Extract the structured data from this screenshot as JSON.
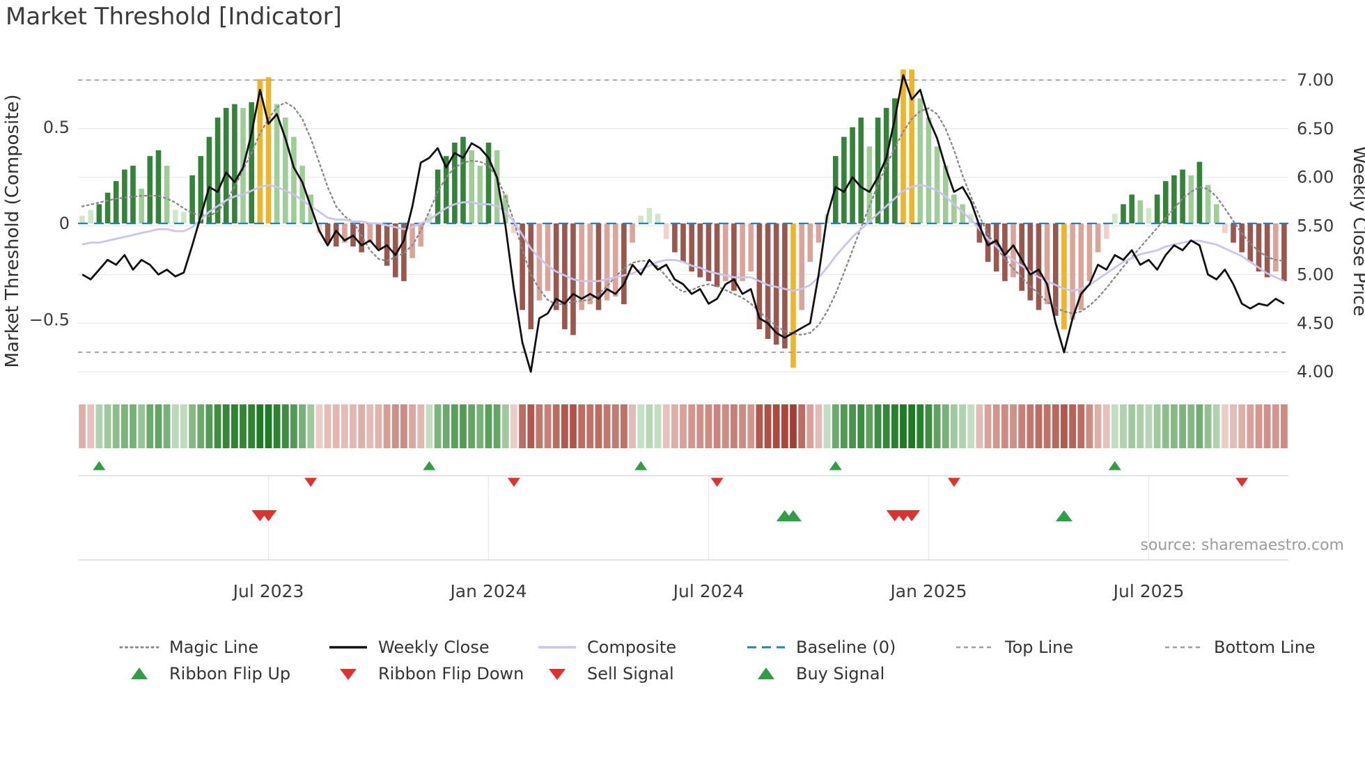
{
  "title": "Market Threshold [Indicator]",
  "source_text": "source: sharemaestro.com",
  "axes": {
    "left_label": "Market Threshold (Composite)",
    "left_ticks": [
      "0.5",
      "0",
      "−0.5"
    ],
    "left_tick_values": [
      0.5,
      0,
      -0.5
    ],
    "right_label": "Weekly Close Price",
    "right_ticks": [
      "7.00",
      "6.50",
      "6.00",
      "5.50",
      "5.00",
      "4.50",
      "4.00"
    ],
    "right_tick_values": [
      7,
      6.5,
      6,
      5.5,
      5,
      4.5,
      4
    ]
  },
  "chart_data": {
    "type": "bar",
    "subtype": "weekly indicator histogram with overlaid lines, color ribbon and signal markers",
    "x_unit": "weeks, approx Feb 2023 - Oct 2025",
    "x_ticks": [
      {
        "label": "Jul 2023",
        "week": 22
      },
      {
        "label": "Jan 2024",
        "week": 48
      },
      {
        "label": "Jul 2024",
        "week": 74
      },
      {
        "label": "Jan 2025",
        "week": 100
      },
      {
        "label": "Jul 2025",
        "week": 126
      }
    ],
    "left_axis_range": [
      -0.85,
      0.85
    ],
    "right_axis_range": [
      3.9,
      7.15
    ],
    "baseline_value": 0,
    "top_line_value": 7.0,
    "bottom_line_value": 4.2,
    "series": [
      {
        "name": "Composite Histogram",
        "axis": "left",
        "type": "bar",
        "values": [
          0.04,
          0.07,
          0.1,
          0.16,
          0.22,
          0.28,
          0.3,
          0.18,
          0.35,
          0.38,
          0.3,
          0.07,
          0.06,
          0.25,
          0.35,
          0.45,
          0.55,
          0.6,
          0.62,
          0.6,
          0.63,
          0.75,
          0.76,
          0.62,
          0.55,
          0.45,
          0.3,
          0.15,
          -0.05,
          -0.1,
          -0.12,
          -0.1,
          -0.12,
          -0.15,
          -0.1,
          -0.13,
          -0.22,
          -0.28,
          -0.3,
          -0.18,
          -0.12,
          0.05,
          0.28,
          0.35,
          0.42,
          0.45,
          0.38,
          0.3,
          0.42,
          0.38,
          0.15,
          -0.05,
          -0.45,
          -0.55,
          -0.4,
          -0.35,
          -0.45,
          -0.55,
          -0.58,
          -0.45,
          -0.42,
          -0.45,
          -0.4,
          -0.38,
          -0.42,
          -0.1,
          0.04,
          0.08,
          0.05,
          -0.08,
          -0.15,
          -0.2,
          -0.25,
          -0.28,
          -0.3,
          -0.33,
          -0.3,
          -0.35,
          -0.3,
          -0.25,
          -0.55,
          -0.6,
          -0.63,
          -0.65,
          -0.75,
          -0.45,
          -0.2,
          -0.1,
          0.05,
          0.35,
          0.45,
          0.5,
          0.55,
          0.4,
          0.55,
          0.6,
          0.65,
          0.8,
          0.8,
          0.65,
          0.55,
          0.4,
          0.3,
          0.15,
          0.1,
          0.05,
          -0.1,
          -0.2,
          -0.25,
          -0.3,
          -0.28,
          -0.35,
          -0.4,
          -0.45,
          -0.42,
          -0.48,
          -0.55,
          -0.5,
          -0.45,
          -0.3,
          -0.15,
          -0.08,
          0.05,
          0.1,
          0.15,
          0.12,
          0.08,
          0.15,
          0.22,
          0.25,
          0.28,
          0.25,
          0.32,
          0.2,
          0.1,
          -0.05,
          -0.1,
          -0.15,
          -0.2,
          -0.25,
          -0.28,
          -0.25,
          -0.3
        ]
      },
      {
        "name": "Weekly Close",
        "axis": "right",
        "type": "line",
        "values": [
          5.0,
          4.95,
          5.05,
          5.15,
          5.1,
          5.2,
          5.05,
          5.15,
          5.1,
          5.0,
          5.05,
          4.98,
          5.02,
          5.3,
          5.6,
          5.9,
          5.85,
          6.05,
          5.95,
          6.1,
          6.45,
          6.9,
          6.55,
          6.65,
          6.4,
          6.1,
          5.95,
          5.7,
          5.45,
          5.3,
          5.45,
          5.35,
          5.4,
          5.3,
          5.35,
          5.25,
          5.3,
          5.2,
          5.35,
          5.7,
          6.15,
          6.2,
          6.3,
          6.1,
          6.25,
          6.2,
          6.35,
          6.3,
          6.2,
          6.0,
          5.5,
          4.85,
          4.3,
          4.0,
          4.55,
          4.6,
          4.75,
          4.7,
          4.8,
          4.75,
          4.8,
          4.75,
          4.85,
          4.8,
          4.9,
          5.1,
          5.0,
          5.15,
          5.05,
          5.1,
          4.95,
          4.9,
          4.8,
          4.85,
          4.7,
          4.75,
          4.9,
          4.95,
          4.8,
          4.85,
          4.55,
          4.5,
          4.4,
          4.35,
          4.4,
          4.45,
          4.5,
          5.0,
          5.6,
          5.9,
          5.85,
          6.0,
          5.9,
          5.85,
          6.0,
          6.2,
          6.6,
          7.05,
          6.8,
          6.9,
          6.6,
          6.4,
          6.1,
          5.85,
          5.9,
          5.75,
          5.5,
          5.3,
          5.35,
          5.2,
          5.3,
          5.15,
          5.0,
          5.05,
          4.9,
          4.5,
          4.2,
          4.55,
          4.8,
          4.9,
          5.1,
          5.05,
          5.2,
          5.15,
          5.25,
          5.1,
          5.15,
          5.05,
          5.2,
          5.3,
          5.25,
          5.35,
          5.3,
          5.0,
          4.95,
          5.05,
          4.9,
          4.7,
          4.65,
          4.7,
          4.68,
          4.75,
          4.7
        ]
      },
      {
        "name": "Composite",
        "axis": "left",
        "type": "line",
        "values": [
          -0.11,
          -0.1,
          -0.1,
          -0.09,
          -0.08,
          -0.07,
          -0.06,
          -0.05,
          -0.04,
          -0.03,
          -0.03,
          -0.04,
          -0.04,
          -0.02,
          0.02,
          0.06,
          0.09,
          0.12,
          0.14,
          0.15,
          0.17,
          0.19,
          0.2,
          0.19,
          0.17,
          0.15,
          0.12,
          0.09,
          0.06,
          0.03,
          0.02,
          0.02,
          0.01,
          0.01,
          0.0,
          0.0,
          -0.01,
          -0.02,
          -0.03,
          -0.02,
          0.0,
          0.02,
          0.05,
          0.08,
          0.1,
          0.11,
          0.11,
          0.1,
          0.1,
          0.09,
          0.06,
          0.01,
          -0.06,
          -0.13,
          -0.18,
          -0.22,
          -0.25,
          -0.27,
          -0.29,
          -0.3,
          -0.3,
          -0.3,
          -0.29,
          -0.28,
          -0.27,
          -0.26,
          -0.24,
          -0.22,
          -0.2,
          -0.19,
          -0.19,
          -0.2,
          -0.22,
          -0.23,
          -0.25,
          -0.26,
          -0.27,
          -0.28,
          -0.28,
          -0.28,
          -0.3,
          -0.32,
          -0.33,
          -0.34,
          -0.35,
          -0.34,
          -0.32,
          -0.28,
          -0.23,
          -0.17,
          -0.12,
          -0.07,
          -0.03,
          0.01,
          0.05,
          0.09,
          0.13,
          0.17,
          0.19,
          0.2,
          0.19,
          0.17,
          0.14,
          0.1,
          0.06,
          0.02,
          -0.03,
          -0.08,
          -0.12,
          -0.16,
          -0.19,
          -0.22,
          -0.25,
          -0.28,
          -0.3,
          -0.32,
          -0.34,
          -0.35,
          -0.34,
          -0.32,
          -0.29,
          -0.26,
          -0.23,
          -0.2,
          -0.18,
          -0.16,
          -0.15,
          -0.14,
          -0.12,
          -0.11,
          -0.1,
          -0.09,
          -0.09,
          -0.1,
          -0.11,
          -0.13,
          -0.15,
          -0.17,
          -0.2,
          -0.23,
          -0.26,
          -0.28,
          -0.3
        ]
      },
      {
        "name": "Magic Line",
        "axis": "right",
        "type": "line",
        "values": [
          5.7,
          5.72,
          5.74,
          5.76,
          5.78,
          5.79,
          5.8,
          5.81,
          5.81,
          5.81,
          5.78,
          5.74,
          5.68,
          5.63,
          5.61,
          5.6,
          5.65,
          5.75,
          5.9,
          6.08,
          6.25,
          6.45,
          6.6,
          6.72,
          6.77,
          6.72,
          6.6,
          6.4,
          6.15,
          5.9,
          5.7,
          5.6,
          5.54,
          5.4,
          5.25,
          5.16,
          5.14,
          5.18,
          5.22,
          5.3,
          5.45,
          5.65,
          5.85,
          6.0,
          6.1,
          6.15,
          6.17,
          6.16,
          6.12,
          6.0,
          5.8,
          5.55,
          5.25,
          5.0,
          4.85,
          4.74,
          4.69,
          4.7,
          4.72,
          4.73,
          4.74,
          4.8,
          4.88,
          4.98,
          5.06,
          5.12,
          5.14,
          5.14,
          5.08,
          4.98,
          4.88,
          4.82,
          4.84,
          4.88,
          4.9,
          4.88,
          4.84,
          4.8,
          4.76,
          4.7,
          4.62,
          4.54,
          4.47,
          4.42,
          4.39,
          4.38,
          4.4,
          4.48,
          4.62,
          4.8,
          5.02,
          5.25,
          5.48,
          5.7,
          5.92,
          6.12,
          6.3,
          6.47,
          6.6,
          6.68,
          6.71,
          6.65,
          6.5,
          6.28,
          6.02,
          5.8,
          5.6,
          5.42,
          5.28,
          5.16,
          5.06,
          4.97,
          4.88,
          4.8,
          4.72,
          4.66,
          4.62,
          4.6,
          4.62,
          4.68,
          4.76,
          4.86,
          4.97,
          5.08,
          5.18,
          5.28,
          5.38,
          5.48,
          5.58,
          5.68,
          5.78,
          5.85,
          5.9,
          5.88,
          5.8,
          5.68,
          5.55,
          5.42,
          5.32,
          5.24,
          5.18,
          5.15,
          5.14
        ]
      }
    ],
    "ribbon": [
      -0.15,
      -0.08,
      0.1,
      0.16,
      0.22,
      0.28,
      0.3,
      0.18,
      0.35,
      0.38,
      0.3,
      0.07,
      0.06,
      0.25,
      0.35,
      0.45,
      0.55,
      0.6,
      0.62,
      0.6,
      0.63,
      0.75,
      0.76,
      0.62,
      0.55,
      0.45,
      0.3,
      0.15,
      -0.05,
      -0.1,
      -0.12,
      -0.1,
      -0.12,
      -0.15,
      -0.1,
      -0.13,
      -0.22,
      -0.28,
      -0.3,
      -0.18,
      -0.12,
      0.05,
      0.28,
      0.35,
      0.42,
      0.45,
      0.38,
      0.3,
      0.42,
      0.38,
      0.15,
      -0.05,
      -0.45,
      -0.55,
      -0.4,
      -0.35,
      -0.45,
      -0.55,
      -0.58,
      -0.45,
      -0.42,
      -0.45,
      -0.4,
      -0.38,
      -0.42,
      -0.1,
      0.04,
      0.08,
      0.05,
      -0.08,
      -0.15,
      -0.2,
      -0.25,
      -0.28,
      -0.3,
      -0.33,
      -0.3,
      -0.35,
      -0.3,
      -0.25,
      -0.55,
      -0.6,
      -0.63,
      -0.65,
      -0.75,
      -0.45,
      -0.2,
      -0.1,
      0.05,
      0.35,
      0.45,
      0.5,
      0.55,
      0.4,
      0.55,
      0.6,
      0.65,
      0.8,
      0.8,
      0.65,
      0.55,
      0.4,
      0.3,
      0.15,
      0.1,
      0.05,
      -0.1,
      -0.2,
      -0.25,
      -0.3,
      -0.28,
      -0.35,
      -0.4,
      -0.45,
      -0.42,
      -0.48,
      -0.55,
      -0.5,
      -0.45,
      -0.3,
      -0.15,
      -0.08,
      0.05,
      0.1,
      0.15,
      0.12,
      0.08,
      0.15,
      0.22,
      0.25,
      0.28,
      0.25,
      0.32,
      0.2,
      0.1,
      -0.05,
      -0.1,
      -0.15,
      -0.2,
      -0.25,
      -0.28,
      -0.25,
      -0.3
    ],
    "highlight_weeks": [
      21,
      22,
      84,
      97,
      98,
      116
    ],
    "signals": {
      "ribbon_flip_up_weeks": [
        2,
        41,
        66,
        89,
        122
      ],
      "ribbon_flip_down_weeks": [
        27,
        51,
        75,
        103,
        137
      ],
      "buy_signal_weeks": [
        83,
        84,
        116
      ],
      "sell_signal_weeks": [
        21,
        22,
        96,
        97,
        98
      ]
    }
  },
  "legend": {
    "row1": [
      {
        "label": "Magic Line",
        "swatch": "dotted-gray-line"
      },
      {
        "label": "Weekly Close",
        "swatch": "solid-black-line"
      },
      {
        "label": "Composite",
        "swatch": "solid-lavender-line"
      },
      {
        "label": "Baseline (0)",
        "swatch": "dashed-blue-line"
      },
      {
        "label": "Top Line",
        "swatch": "dashed-gray-line"
      },
      {
        "label": "Bottom Line",
        "swatch": "dashed-gray-line"
      }
    ],
    "row2": [
      {
        "label": "Ribbon Flip Up",
        "swatch": "green-up-triangle"
      },
      {
        "label": "Ribbon Flip Down",
        "swatch": "red-down-triangle"
      },
      {
        "label": "Sell Signal",
        "swatch": "red-down-triangle"
      },
      {
        "label": "Buy Signal",
        "swatch": "green-up-triangle"
      }
    ]
  },
  "colors": {
    "bar_pos_dark": "#35823a",
    "bar_pos_light": "#9fcd97",
    "bar_pos_faint": "#cde7c8",
    "bar_neg_dark": "#99574d",
    "bar_neg_light": "#dba49a",
    "bar_neg_faint": "#f0d0ca",
    "highlight_gold": "#f0b429",
    "weekly_close": "#101010",
    "composite_line": "#c9c5ee",
    "magic_line": "#8a8a8a",
    "baseline": "#2e7fa8",
    "threshold_line": "#9e9e9e",
    "grid": "#eaeaea",
    "panel_line": "#d9d9d9",
    "flip_up_green": "#2f9e44",
    "flip_down_red": "#e03131",
    "buy_green": "#2f9e44",
    "sell_red": "#e03131",
    "ribbon_green_light": "#dcedd8",
    "ribbon_green_dark": "#1f7a24",
    "ribbon_red_light": "#f7e3df",
    "ribbon_red_dark": "#a63d32"
  }
}
